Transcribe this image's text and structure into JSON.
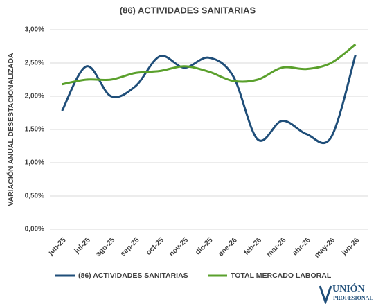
{
  "chart_data": {
    "type": "line",
    "title": "(86) ACTIVIDADES SANITARIAS",
    "y_label": "VARIACIÓN ANUAL DESESTACIONALIZADA",
    "categories": [
      "jun-25",
      "jul-25",
      "ago-25",
      "sep-25",
      "oct-25",
      "nov-25",
      "dic-25",
      "ene-26",
      "feb-26",
      "mar-26",
      "abr-26",
      "may-26",
      "jun-26"
    ],
    "series": [
      {
        "name": "(86) ACTIVIDADES SANITARIAS",
        "color": "#1f4e79",
        "values": [
          1.78,
          2.45,
          2.0,
          2.15,
          2.6,
          2.43,
          2.58,
          2.3,
          1.35,
          1.63,
          1.43,
          1.38,
          2.62
        ]
      },
      {
        "name": "TOTAL MERCADO LABORAL",
        "color": "#5aa02c",
        "values": [
          2.18,
          2.25,
          2.25,
          2.35,
          2.38,
          2.45,
          2.37,
          2.23,
          2.25,
          2.43,
          2.41,
          2.5,
          2.78
        ]
      }
    ],
    "ylim": [
      0,
      3
    ],
    "yticks": [
      {
        "value": 0,
        "label": "0,00%"
      },
      {
        "value": 0.5,
        "label": "0,50%"
      },
      {
        "value": 1,
        "label": "1,00%"
      },
      {
        "value": 1.5,
        "label": "1,50%"
      },
      {
        "value": 2,
        "label": "2,00%"
      },
      {
        "value": 2.5,
        "label": "2,50%"
      },
      {
        "value": 3,
        "label": "3,00%"
      }
    ],
    "grid": true,
    "legend": "bottom",
    "logo": {
      "main": "UNIÓN",
      "sub": "PROFESIONAL"
    }
  }
}
